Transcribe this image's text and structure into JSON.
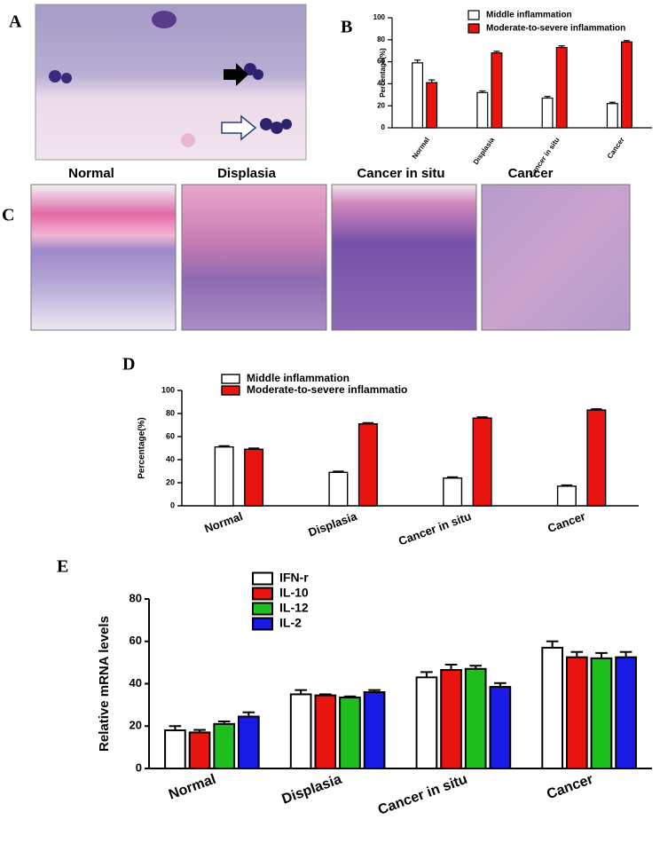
{
  "panel_labels": [
    "A",
    "B",
    "C",
    "D",
    "E"
  ],
  "micrograph_titles": [
    "Normal",
    "Displasia",
    "Cancer in situ",
    "Cancer"
  ],
  "chart_data": [
    {
      "type": "bar",
      "y_label": "Percentage(%)",
      "categories": [
        "Normal",
        "Displasia",
        "Cancer in situ",
        "Cancer"
      ],
      "series": [
        {
          "name": "Middle inflammation",
          "color": "#ffffff",
          "values": [
            59,
            32,
            27,
            22
          ],
          "errors": [
            2.5,
            1.5,
            1.5,
            1.2
          ]
        },
        {
          "name": "Moderate-to-severe inflammation",
          "color": "#e8140f",
          "values": [
            41,
            68,
            73,
            78
          ],
          "errors": [
            2.5,
            1.5,
            1.5,
            1.2
          ]
        }
      ],
      "ylim": [
        0,
        100
      ],
      "yticks": [
        0,
        20,
        40,
        60,
        80,
        100
      ]
    },
    {
      "type": "bar",
      "y_label": "Percentage(%)",
      "categories": [
        "Normal",
        "Displasia",
        "Cancer in situ",
        "Cancer"
      ],
      "series": [
        {
          "name": "Middle inflammation",
          "color": "#ffffff",
          "values": [
            51,
            29,
            24,
            17
          ],
          "errors": [
            1,
            1,
            1,
            1
          ]
        },
        {
          "name": "Moderate-to-severe inflammatio",
          "color": "#e8140f",
          "values": [
            49,
            71,
            76,
            83
          ],
          "errors": [
            1,
            1,
            1,
            1
          ]
        }
      ],
      "ylim": [
        0,
        100
      ],
      "yticks": [
        0,
        20,
        40,
        60,
        80,
        100
      ]
    },
    {
      "type": "bar",
      "y_label": "Relative mRNA levels",
      "categories": [
        "Normal",
        "Displasia",
        "Cancer in situ",
        "Cancer"
      ],
      "series": [
        {
          "name": "IFN-r",
          "color": "#ffffff",
          "values": [
            18,
            35,
            43,
            57
          ],
          "errors": [
            2,
            2,
            2.5,
            3
          ]
        },
        {
          "name": "IL-10",
          "color": "#e8140f",
          "values": [
            17,
            34.5,
            46.5,
            52.5
          ],
          "errors": [
            1.2,
            0.5,
            2.5,
            2.5
          ]
        },
        {
          "name": "IL-12",
          "color": "#1fbf1f",
          "values": [
            21,
            33.5,
            47,
            52
          ],
          "errors": [
            1.2,
            0.5,
            1.5,
            2.5
          ]
        },
        {
          "name": "IL-2",
          "color": "#1a1ae6",
          "values": [
            24.5,
            36,
            38.5,
            52.5
          ],
          "errors": [
            2,
            1,
            1.8,
            2.5
          ]
        }
      ],
      "ylim": [
        0,
        80
      ],
      "yticks": [
        0,
        20,
        40,
        60,
        80
      ]
    }
  ]
}
